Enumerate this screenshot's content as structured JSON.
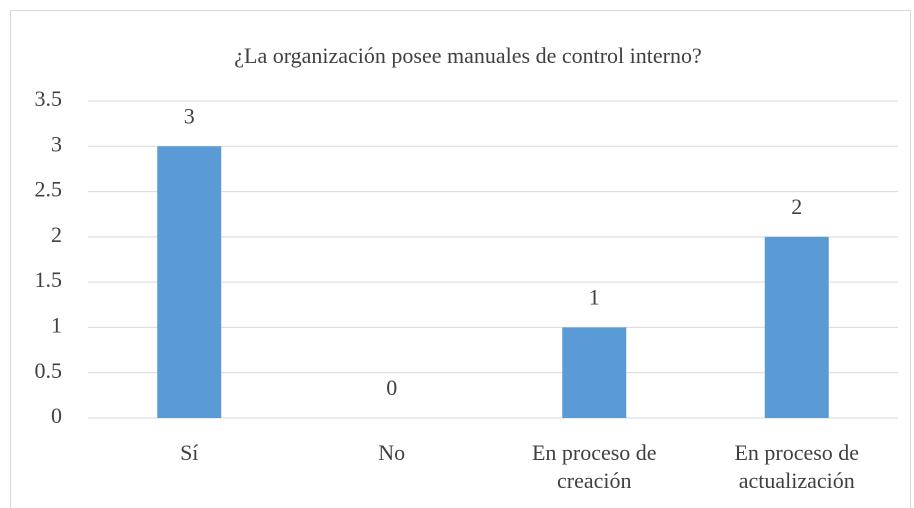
{
  "chart_data": {
    "type": "bar",
    "title": "¿La organización posee manuales de control interno?",
    "categories": [
      "Sí",
      "No",
      "En proceso de creación",
      "En proceso de actualización"
    ],
    "values": [
      3,
      0,
      1,
      2
    ],
    "color": "#5b9bd5",
    "ylim": [
      0,
      3.5
    ],
    "yticks": [
      0,
      0.5,
      1,
      1.5,
      2,
      2.5,
      3,
      3.5
    ],
    "grid": true
  }
}
